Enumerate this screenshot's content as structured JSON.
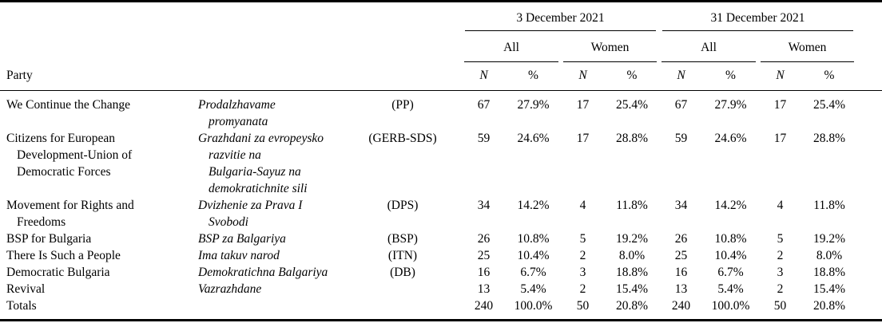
{
  "table": {
    "col_headers": {
      "party": "Party",
      "date1": "3 December 2021",
      "date2": "31 December 2021",
      "all": "All",
      "women": "Women",
      "n": "N",
      "pct": "%"
    },
    "rows": [
      {
        "name_en": "We Continue the Change",
        "name_translit": "Prodalzhavame\npromyanata",
        "abbr": "(PP)",
        "values": [
          "67",
          "27.9%",
          "17",
          "25.4%",
          "67",
          "27.9%",
          "17",
          "25.4%"
        ]
      },
      {
        "name_en": "Citizens for European\nDevelopment-Union of\nDemocratic Forces",
        "name_translit": "Grazhdani za evropeysko\nrazvitie na\nBulgaria-Sayuz na\ndemokratichnite sili",
        "abbr": "(GERB-SDS)",
        "values": [
          "59",
          "24.6%",
          "17",
          "28.8%",
          "59",
          "24.6%",
          "17",
          "28.8%"
        ]
      },
      {
        "name_en": "Movement for Rights and\nFreedoms",
        "name_translit": "Dvizhenie za Prava I\nSvobodi",
        "abbr": "(DPS)",
        "values": [
          "34",
          "14.2%",
          "4",
          "11.8%",
          "34",
          "14.2%",
          "4",
          "11.8%"
        ]
      },
      {
        "name_en": "BSP for Bulgaria",
        "name_translit": "BSP za Balgariya",
        "abbr": "(BSP)",
        "values": [
          "26",
          "10.8%",
          "5",
          "19.2%",
          "26",
          "10.8%",
          "5",
          "19.2%"
        ]
      },
      {
        "name_en": "There Is Such a People",
        "name_translit": "Ima takuv narod",
        "abbr": "(ITN)",
        "values": [
          "25",
          "10.4%",
          "2",
          "8.0%",
          "25",
          "10.4%",
          "2",
          "8.0%"
        ]
      },
      {
        "name_en": "Democratic Bulgaria",
        "name_translit": "Demokratichna Balgariya",
        "abbr": "(DB)",
        "values": [
          "16",
          "6.7%",
          "3",
          "18.8%",
          "16",
          "6.7%",
          "3",
          "18.8%"
        ]
      },
      {
        "name_en": "Revival",
        "name_translit": "Vazrazhdane",
        "abbr": "",
        "values": [
          "13",
          "5.4%",
          "2",
          "15.4%",
          "13",
          "5.4%",
          "2",
          "15.4%"
        ]
      },
      {
        "name_en": "Totals",
        "name_translit": "",
        "abbr": "",
        "values": [
          "240",
          "100.0%",
          "50",
          "20.8%",
          "240",
          "100.0%",
          "50",
          "20.8%"
        ]
      }
    ]
  },
  "colors": {
    "text": "#000000",
    "rule": "#000000",
    "background": "#ffffff"
  }
}
